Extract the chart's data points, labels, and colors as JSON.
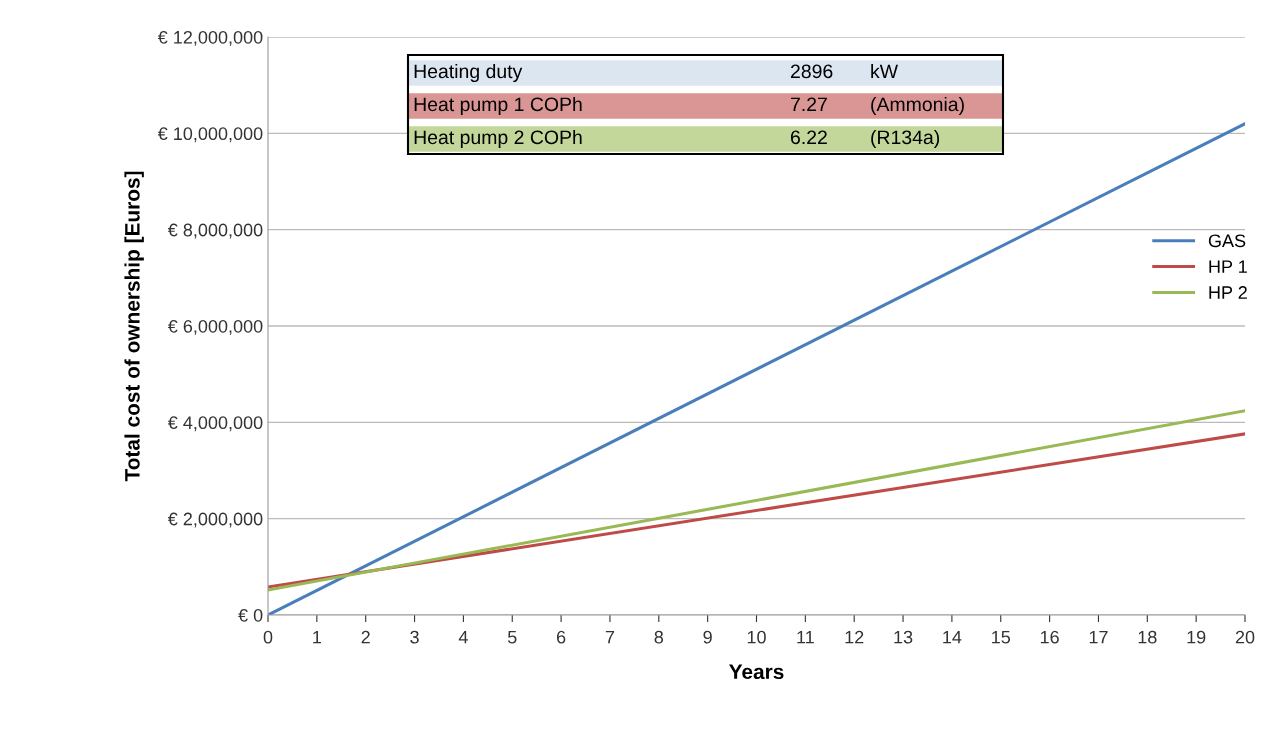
{
  "chart_data": {
    "type": "line",
    "xlabel": "Years",
    "ylabel": "Total cost of ownership [Euros]",
    "x": [
      0,
      20
    ],
    "series": [
      {
        "name": "GAS",
        "color": "#4a7ebb",
        "values": [
          0,
          10200000
        ]
      },
      {
        "name": "HP 1",
        "color": "#be4b48",
        "values": [
          580000,
          3760000
        ]
      },
      {
        "name": "HP 2",
        "color": "#98b954",
        "values": [
          520000,
          4240000
        ]
      }
    ],
    "xlim": [
      0,
      20
    ],
    "xticks": [
      0,
      1,
      2,
      3,
      4,
      5,
      6,
      7,
      8,
      9,
      10,
      11,
      12,
      13,
      14,
      15,
      16,
      17,
      18,
      19,
      20
    ],
    "ylim": [
      0,
      12000000
    ],
    "yticks": [
      {
        "value": 0,
        "label": "€ 0"
      },
      {
        "value": 2000000,
        "label": "€ 2,000,000"
      },
      {
        "value": 4000000,
        "label": "€ 4,000,000"
      },
      {
        "value": 6000000,
        "label": "€ 6,000,000"
      },
      {
        "value": 8000000,
        "label": "€ 8,000,000"
      },
      {
        "value": 10000000,
        "label": "€ 10,000,000"
      },
      {
        "value": 12000000,
        "label": "€ 12,000,000"
      }
    ],
    "grid": "y",
    "legend": "right",
    "marker": "none",
    "line_style": "solid",
    "annotations": [
      "Heating duty",
      "2896",
      "kW",
      "Heat pump 1 COPh",
      "7.27",
      "(Ammonia)",
      "Heat pump 2 COPh",
      "6.22",
      "(R134a)"
    ]
  }
}
